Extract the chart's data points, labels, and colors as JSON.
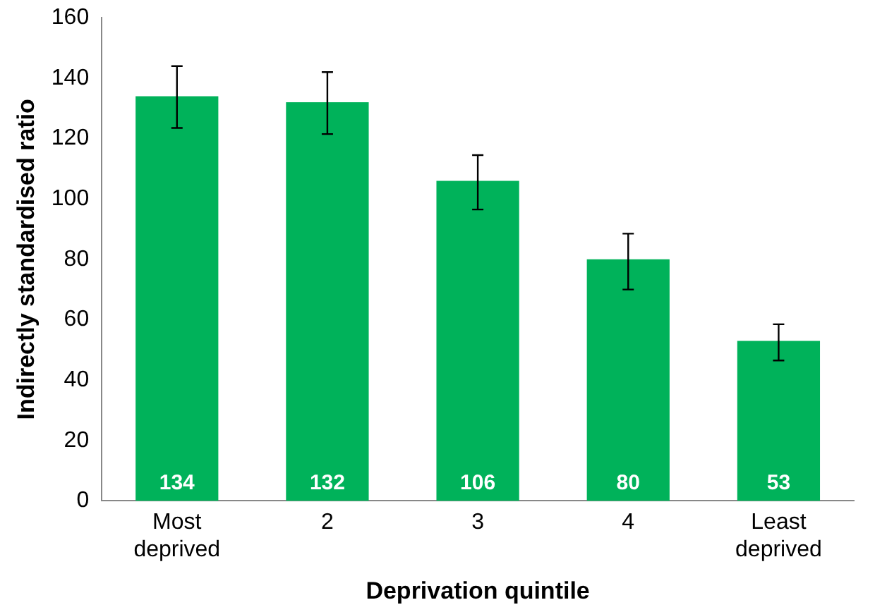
{
  "chart_data": {
    "type": "bar",
    "xlabel": "Deprivation quintile",
    "ylabel": "Indirectly standardised ratio",
    "categories": [
      "Most deprived",
      "2",
      "3",
      "4",
      "Least deprived"
    ],
    "values": [
      134,
      132,
      106,
      80,
      53
    ],
    "color": "#00b25a",
    "errors": [
      [
        123.5,
        144
      ],
      [
        121.5,
        142
      ],
      [
        96.5,
        114.5
      ],
      [
        70,
        88.5
      ],
      [
        46.5,
        58.5
      ]
    ],
    "ylim": [
      0,
      160
    ],
    "yticks": [
      0,
      20,
      40,
      60,
      80,
      100,
      120,
      140,
      160
    ],
    "grid": false,
    "legend": false,
    "data_labels": true
  }
}
